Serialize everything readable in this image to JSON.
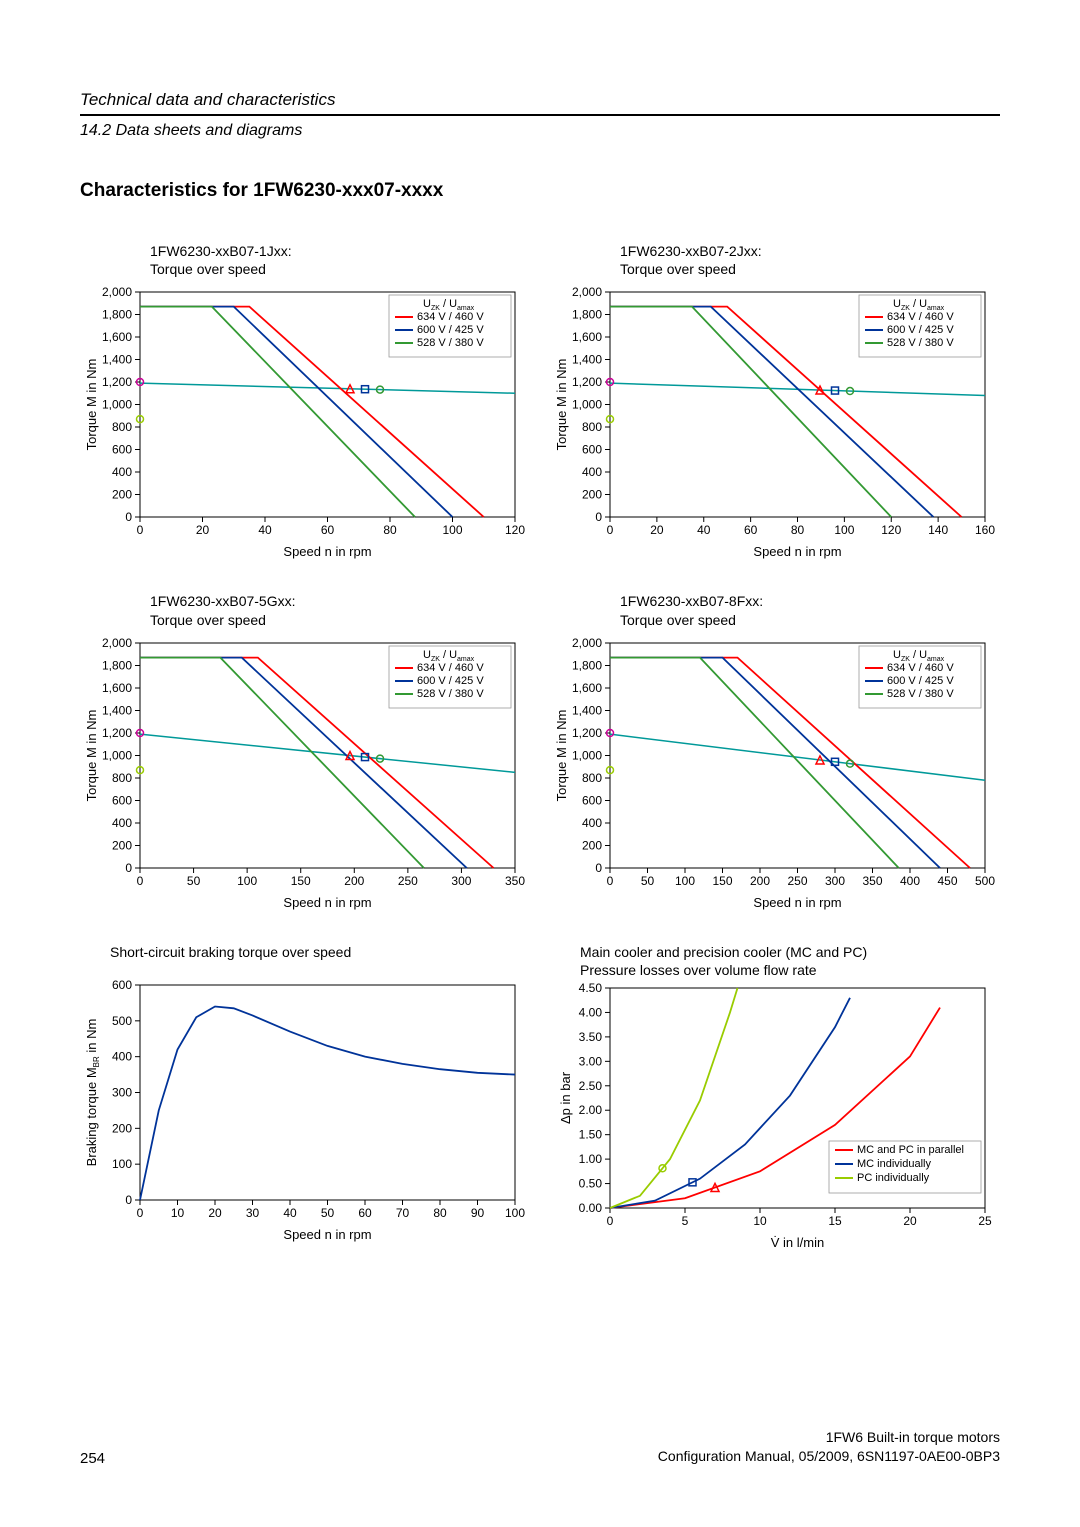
{
  "header": {
    "section_title": "Technical data and characteristics",
    "section_subtitle": "14.2 Data sheets and diagrams"
  },
  "heading": "Characteristics for 1FW6230-xxx07-xxxx",
  "colors": {
    "red": "#ff0000",
    "blue": "#003399",
    "green": "#339933",
    "lime": "#99cc00",
    "teal": "#009999",
    "magenta": "#cc0099",
    "axis": "#000000",
    "bg": "#ffffff"
  },
  "marker_teal_x": 0.6,
  "legend_voltage": {
    "title": "U_ZK / U_amax",
    "items": [
      {
        "label": "634 V / 460 V",
        "color": "#ff0000"
      },
      {
        "label": "600 V / 425 V",
        "color": "#003399"
      },
      {
        "label": "528 V / 380 V",
        "color": "#339933"
      }
    ]
  },
  "charts": {
    "c1": {
      "title1": "1FW6230-xxB07-1Jxx:",
      "title2": "Torque over speed",
      "xlabel": "Speed n in rpm",
      "ylabel": "Torque M in Nm",
      "xlim": [
        0,
        120
      ],
      "ylim": [
        0,
        2000
      ],
      "xticks": [
        0,
        20,
        40,
        60,
        80,
        100,
        120
      ],
      "yticks": [
        0,
        200,
        400,
        600,
        800,
        1000,
        1200,
        1400,
        1600,
        1800,
        2000
      ],
      "marker_green": [
        0,
        870
      ],
      "marker_magenta": [
        0,
        1200
      ],
      "teal_line": [
        [
          0,
          1190
        ],
        [
          120,
          1100
        ]
      ],
      "curves": [
        {
          "color": "#ff0000",
          "pts": [
            [
              0,
              1870
            ],
            [
              35,
              1870
            ],
            [
              110,
              0
            ]
          ]
        },
        {
          "color": "#003399",
          "pts": [
            [
              0,
              1870
            ],
            [
              30,
              1870
            ],
            [
              100,
              0
            ]
          ]
        },
        {
          "color": "#339933",
          "pts": [
            [
              0,
              1870
            ],
            [
              23,
              1870
            ],
            [
              88,
              0
            ]
          ]
        }
      ]
    },
    "c2": {
      "title1": "1FW6230-xxB07-2Jxx:",
      "title2": "Torque over speed",
      "xlabel": "Speed n in rpm",
      "ylabel": "Torque M in Nm",
      "xlim": [
        0,
        160
      ],
      "ylim": [
        0,
        2000
      ],
      "xticks": [
        0,
        20,
        40,
        60,
        80,
        100,
        120,
        140,
        160
      ],
      "yticks": [
        0,
        200,
        400,
        600,
        800,
        1000,
        1200,
        1400,
        1600,
        1800,
        2000
      ],
      "marker_green": [
        0,
        870
      ],
      "marker_magenta": [
        0,
        1200
      ],
      "teal_line": [
        [
          0,
          1190
        ],
        [
          160,
          1080
        ]
      ],
      "curves": [
        {
          "color": "#ff0000",
          "pts": [
            [
              0,
              1870
            ],
            [
              50,
              1870
            ],
            [
              150,
              0
            ]
          ]
        },
        {
          "color": "#003399",
          "pts": [
            [
              0,
              1870
            ],
            [
              43,
              1870
            ],
            [
              138,
              0
            ]
          ]
        },
        {
          "color": "#339933",
          "pts": [
            [
              0,
              1870
            ],
            [
              35,
              1870
            ],
            [
              120,
              0
            ]
          ]
        }
      ]
    },
    "c3": {
      "title1": "1FW6230-xxB07-5Gxx:",
      "title2": "Torque over speed",
      "xlabel": "Speed n in rpm",
      "ylabel": "Torque M in Nm",
      "xlim": [
        0,
        350
      ],
      "ylim": [
        0,
        2000
      ],
      "xticks": [
        0,
        50,
        100,
        150,
        200,
        250,
        300,
        350
      ],
      "yticks": [
        0,
        200,
        400,
        600,
        800,
        1000,
        1200,
        1400,
        1600,
        1800,
        2000
      ],
      "marker_green": [
        0,
        870
      ],
      "marker_magenta": [
        0,
        1200
      ],
      "teal_line": [
        [
          0,
          1190
        ],
        [
          350,
          850
        ]
      ],
      "curves": [
        {
          "color": "#ff0000",
          "pts": [
            [
              0,
              1870
            ],
            [
              110,
              1870
            ],
            [
              330,
              0
            ]
          ]
        },
        {
          "color": "#003399",
          "pts": [
            [
              0,
              1870
            ],
            [
              95,
              1870
            ],
            [
              305,
              0
            ]
          ]
        },
        {
          "color": "#339933",
          "pts": [
            [
              0,
              1870
            ],
            [
              75,
              1870
            ],
            [
              265,
              0
            ]
          ]
        }
      ]
    },
    "c4": {
      "title1": "1FW6230-xxB07-8Fxx:",
      "title2": "Torque over speed",
      "xlabel": "Speed n in rpm",
      "ylabel": "Torque M in Nm",
      "xlim": [
        0,
        500
      ],
      "ylim": [
        0,
        2000
      ],
      "xticks": [
        0,
        50,
        100,
        150,
        200,
        250,
        300,
        350,
        400,
        450,
        500
      ],
      "yticks": [
        0,
        200,
        400,
        600,
        800,
        1000,
        1200,
        1400,
        1600,
        1800,
        2000
      ],
      "marker_green": [
        0,
        870
      ],
      "marker_magenta": [
        0,
        1200
      ],
      "teal_line": [
        [
          0,
          1190
        ],
        [
          500,
          780
        ]
      ],
      "curves": [
        {
          "color": "#ff0000",
          "pts": [
            [
              0,
              1870
            ],
            [
              170,
              1870
            ],
            [
              480,
              0
            ]
          ]
        },
        {
          "color": "#003399",
          "pts": [
            [
              0,
              1870
            ],
            [
              150,
              1870
            ],
            [
              440,
              0
            ]
          ]
        },
        {
          "color": "#339933",
          "pts": [
            [
              0,
              1870
            ],
            [
              120,
              1870
            ],
            [
              385,
              0
            ]
          ]
        }
      ]
    },
    "braking": {
      "title": "Short-circuit braking torque over speed",
      "xlabel": "Speed n in rpm",
      "ylabel": "Braking torque M_BR in Nm",
      "xlim": [
        0,
        100
      ],
      "ylim": [
        0,
        600
      ],
      "xticks": [
        0,
        10,
        20,
        30,
        40,
        50,
        60,
        70,
        80,
        90,
        100
      ],
      "yticks": [
        0,
        100,
        200,
        300,
        400,
        500,
        600
      ],
      "yticks_fmt": [
        "0",
        "100",
        "200",
        "300",
        "400",
        "500",
        "600"
      ],
      "color": "#003399",
      "pts": [
        [
          0,
          0
        ],
        [
          5,
          250
        ],
        [
          10,
          420
        ],
        [
          15,
          510
        ],
        [
          20,
          540
        ],
        [
          25,
          535
        ],
        [
          30,
          515
        ],
        [
          40,
          470
        ],
        [
          50,
          430
        ],
        [
          60,
          400
        ],
        [
          70,
          380
        ],
        [
          80,
          365
        ],
        [
          90,
          355
        ],
        [
          100,
          350
        ]
      ]
    },
    "pressure": {
      "title1": "Main cooler and precision cooler (MC and PC)",
      "title2": "Pressure losses over volume flow rate",
      "xlabel": "V̇ in l/min",
      "ylabel": "Δp in bar",
      "xlim": [
        0,
        25
      ],
      "ylim": [
        0,
        4.5
      ],
      "xticks": [
        0,
        5,
        10,
        15,
        20,
        25
      ],
      "yticks": [
        0,
        0.5,
        1,
        1.5,
        2,
        2.5,
        3,
        3.5,
        4,
        4.5
      ],
      "yticks_fmt": [
        "0.00",
        "0.50",
        "1.00",
        "1.50",
        "2.00",
        "2.50",
        "3.00",
        "3.50",
        "4.00",
        "4.50"
      ],
      "legend": [
        {
          "label": "MC and PC in parallel",
          "color": "#ff0000"
        },
        {
          "label": "MC individually",
          "color": "#003399"
        },
        {
          "label": "PC individually",
          "color": "#99cc00"
        }
      ],
      "curves": [
        {
          "color": "#ff0000",
          "marker_x": 7,
          "pts": [
            [
              0,
              0
            ],
            [
              5,
              0.2
            ],
            [
              10,
              0.75
            ],
            [
              15,
              1.7
            ],
            [
              20,
              3.1
            ],
            [
              22,
              4.1
            ]
          ]
        },
        {
          "color": "#003399",
          "marker_x": 5.5,
          "pts": [
            [
              0,
              0
            ],
            [
              3,
              0.15
            ],
            [
              6,
              0.6
            ],
            [
              9,
              1.3
            ],
            [
              12,
              2.3
            ],
            [
              15,
              3.7
            ],
            [
              16,
              4.3
            ]
          ]
        },
        {
          "color": "#99cc00",
          "marker_x": 3.5,
          "pts": [
            [
              0,
              0
            ],
            [
              2,
              0.25
            ],
            [
              4,
              1.0
            ],
            [
              6,
              2.2
            ],
            [
              8,
              4.0
            ],
            [
              8.5,
              4.5
            ]
          ]
        }
      ]
    }
  },
  "footer": {
    "page": "254",
    "right1": "1FW6 Built-in torque motors",
    "right2": "Configuration Manual, 05/2009, 6SN1197-0AE00-0BP3"
  }
}
